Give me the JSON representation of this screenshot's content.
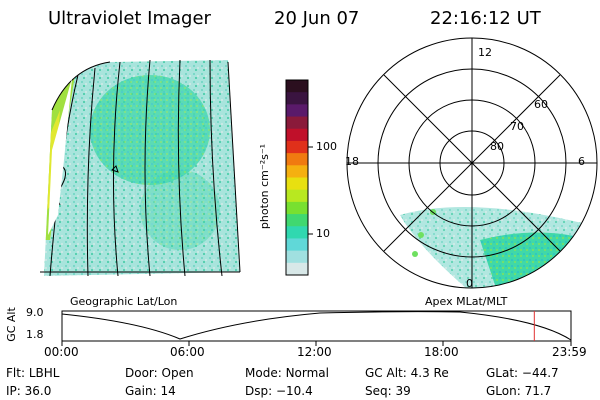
{
  "header": {
    "title": "Ultraviolet Imager",
    "date": "20 Jun 07",
    "time": "22:16:12 UT"
  },
  "colorbar": {
    "unit_label": "photon cm⁻²s⁻¹",
    "ticks": [
      "100",
      "10"
    ],
    "colors": [
      "#2b0f1f",
      "#3a1440",
      "#5a1a6a",
      "#8a1a3a",
      "#c0102a",
      "#e0301a",
      "#f07a10",
      "#f5b010",
      "#e8e010",
      "#b8e820",
      "#78e030",
      "#40d870",
      "#30d8b0",
      "#60d8d8",
      "#a0e0e0",
      "#d8e8e8"
    ]
  },
  "left_panel": {
    "label": "Geographic Lat/Lon"
  },
  "right_panel": {
    "label": "Apex MLat/MLT",
    "mlt_labels": {
      "top": "12",
      "left": "18",
      "right": "6",
      "bottom": "0"
    },
    "mlat_labels": [
      "60",
      "70",
      "80"
    ]
  },
  "altitude_plot": {
    "y_title": "GC Alt",
    "y_max": "9.0",
    "y_min": "1.8",
    "x_ticks": [
      "00:00",
      "06:00",
      "12:00",
      "18:00",
      "23:59"
    ],
    "current_time_marker_hours": 22.27
  },
  "info": {
    "filter_label": "Flt:",
    "filter_value": "LBHL",
    "ip_label": "IP:",
    "ip_value": "36.0",
    "door_label": "Door:",
    "door_value": "Open",
    "gain_label": "Gain:",
    "gain_value": "14",
    "mode_label": "Mode:",
    "mode_value": "Normal",
    "dsp_label": "Dsp:",
    "dsp_value": "−10.4",
    "gcalt_label": "GC Alt:",
    "gcalt_value": "4.3 Re",
    "seq_label": "Seq:",
    "seq_value": "39",
    "glat_label": "GLat:",
    "glat_value": "−44.7",
    "glon_label": "GLon:",
    "glon_value": "71.7"
  }
}
